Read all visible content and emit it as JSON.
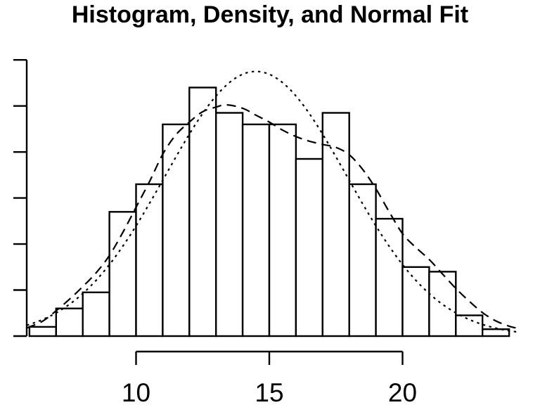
{
  "title": "Histogram, Density, and Normal Fit",
  "colors": {
    "foreground": "#000000",
    "background": "#ffffff"
  },
  "chart_data": {
    "type": "histogram",
    "title": "Histogram, Density, and Normal Fit",
    "xlabel": "",
    "ylabel": "",
    "xlim": [
      5.8,
      24.6
    ],
    "ylim": [
      0,
      0.12
    ],
    "grid": false,
    "legend": "none",
    "x_axis": {
      "tick_values": [
        10,
        15,
        20
      ],
      "tick_labels": [
        "10",
        "15",
        "20"
      ]
    },
    "y_axis": {
      "tick_values": [
        0,
        0.02,
        0.04,
        0.06,
        0.08,
        0.1,
        0.12
      ],
      "tick_labels_visible": false,
      "tick_count": 7
    },
    "histogram": {
      "bin_start": 6,
      "bin_width": 1,
      "bin_end": 24,
      "bar_fill": "#ffffff",
      "bar_stroke": "#000000",
      "densities": [
        0.004,
        0.012,
        0.019,
        0.054,
        0.066,
        0.092,
        0.108,
        0.097,
        0.092,
        0.092,
        0.077,
        0.097,
        0.066,
        0.051,
        0.03,
        0.028,
        0.009,
        0.003
      ]
    },
    "density_curve": {
      "name": "Density",
      "line_style": "dashed",
      "color": "#000000",
      "points": [
        [
          5.9,
          0.0035
        ],
        [
          6.0,
          0.004
        ],
        [
          6.5,
          0.0065
        ],
        [
          7.0,
          0.011
        ],
        [
          7.5,
          0.016
        ],
        [
          8.0,
          0.0215
        ],
        [
          8.5,
          0.0275
        ],
        [
          9.0,
          0.035
        ],
        [
          9.5,
          0.045
        ],
        [
          10.0,
          0.056
        ],
        [
          10.5,
          0.067
        ],
        [
          11.0,
          0.079
        ],
        [
          11.5,
          0.0875
        ],
        [
          12.0,
          0.093
        ],
        [
          12.5,
          0.0975
        ],
        [
          13.0,
          0.0995
        ],
        [
          13.4,
          0.1005
        ],
        [
          14.0,
          0.099
        ],
        [
          14.5,
          0.096
        ],
        [
          15.0,
          0.093
        ],
        [
          15.5,
          0.0895
        ],
        [
          16.0,
          0.0867
        ],
        [
          16.5,
          0.0847
        ],
        [
          17.0,
          0.0833
        ],
        [
          17.5,
          0.082
        ],
        [
          18.0,
          0.0788
        ],
        [
          18.5,
          0.0725
        ],
        [
          19.0,
          0.064
        ],
        [
          19.5,
          0.054
        ],
        [
          20.0,
          0.0445
        ],
        [
          20.5,
          0.0385
        ],
        [
          21.0,
          0.0333
        ],
        [
          21.5,
          0.027
        ],
        [
          22.0,
          0.0207
        ],
        [
          22.5,
          0.0152
        ],
        [
          23.0,
          0.0102
        ],
        [
          23.5,
          0.0066
        ],
        [
          24.0,
          0.0043
        ],
        [
          24.4,
          0.0032
        ]
      ]
    },
    "normal_fit_curve": {
      "name": "Normal Fit",
      "line_style": "dotted",
      "color": "#000000",
      "mean": 14.5,
      "sd": 3.4,
      "peak_density": 0.115,
      "x_range": [
        5.9,
        24.45
      ]
    }
  }
}
